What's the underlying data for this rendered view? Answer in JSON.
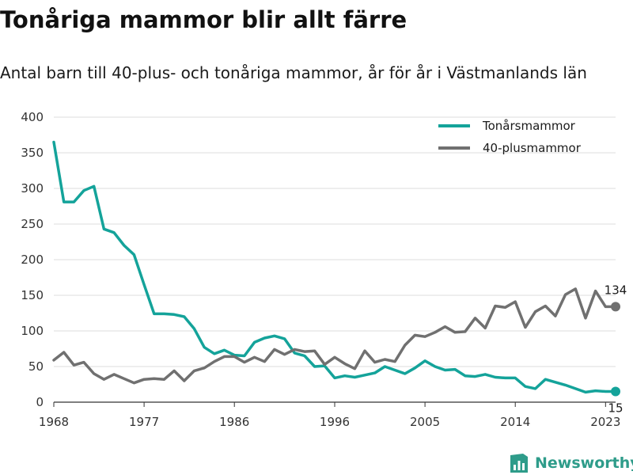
{
  "chart_data": {
    "type": "line",
    "title": "Tonåriga mammor blir allt färre",
    "subtitle": "Antal barn till 40-plus- och tonåriga mammor, år för år i Västmanlands län",
    "xlabel": "",
    "ylabel": "",
    "xlim": [
      1968,
      2024
    ],
    "ylim": [
      0,
      400
    ],
    "x_ticks": [
      1968,
      1977,
      1986,
      1996,
      2005,
      2014,
      2023
    ],
    "y_ticks": [
      0,
      50,
      100,
      150,
      200,
      250,
      300,
      350,
      400
    ],
    "grid": true,
    "legend_position": "top-right",
    "x": [
      1968,
      1969,
      1970,
      1971,
      1972,
      1973,
      1974,
      1975,
      1976,
      1977,
      1978,
      1979,
      1980,
      1981,
      1982,
      1983,
      1984,
      1985,
      1986,
      1987,
      1988,
      1989,
      1990,
      1991,
      1992,
      1993,
      1994,
      1995,
      1996,
      1997,
      1998,
      1999,
      2000,
      2001,
      2002,
      2003,
      2004,
      2005,
      2006,
      2007,
      2008,
      2009,
      2010,
      2011,
      2012,
      2013,
      2014,
      2015,
      2016,
      2017,
      2018,
      2019,
      2020,
      2021,
      2022,
      2023,
      2024
    ],
    "series": [
      {
        "name": "Tonårsmammor",
        "color": "#14a39a",
        "values": [
          365,
          281,
          281,
          297,
          303,
          243,
          238,
          220,
          207,
          165,
          124,
          124,
          123,
          120,
          103,
          77,
          68,
          73,
          66,
          65,
          84,
          90,
          93,
          89,
          69,
          65,
          50,
          51,
          34,
          37,
          35,
          38,
          41,
          50,
          45,
          40,
          48,
          58,
          50,
          45,
          46,
          37,
          36,
          39,
          35,
          34,
          34,
          22,
          19,
          32,
          28,
          24,
          19,
          14,
          16,
          15,
          15
        ],
        "end_label": "15"
      },
      {
        "name": "40-plusmammor",
        "color": "#707070",
        "values": [
          59,
          70,
          52,
          56,
          40,
          32,
          39,
          33,
          27,
          32,
          33,
          32,
          44,
          30,
          44,
          48,
          57,
          64,
          64,
          56,
          63,
          57,
          74,
          67,
          74,
          71,
          72,
          53,
          63,
          54,
          47,
          72,
          56,
          60,
          57,
          80,
          94,
          92,
          98,
          106,
          98,
          99,
          118,
          104,
          135,
          133,
          141,
          105,
          127,
          135,
          121,
          151,
          159,
          118,
          156,
          134,
          134
        ],
        "end_label": "134"
      }
    ]
  },
  "branding": {
    "name": "Newsworthy",
    "icon": "bar-chart-logo-icon",
    "color": "#2e9c8a"
  }
}
